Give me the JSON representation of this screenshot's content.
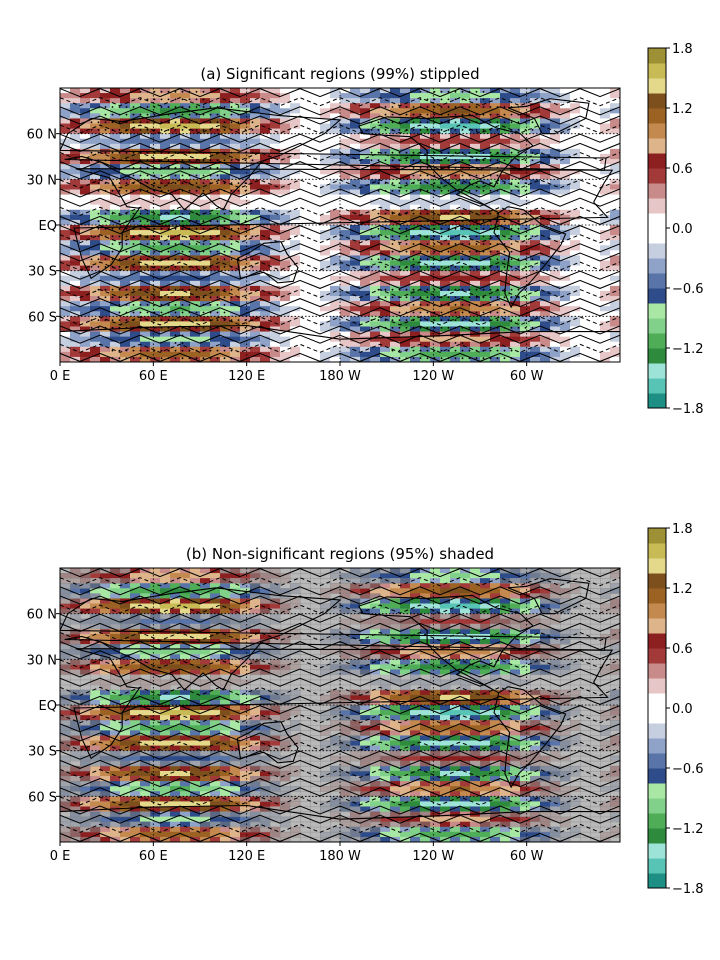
{
  "chart_data": [
    {
      "type": "heatmap",
      "panel": "a",
      "title": "(a) Significant regions (99%) stippled",
      "x_tick_labels": [
        "0 E",
        "60 E",
        "120 E",
        "180 W",
        "120 W",
        "60 W"
      ],
      "y_tick_labels": [
        "60 N",
        "30 N",
        "EQ",
        "30 S",
        "60 S"
      ],
      "xlim": [
        0,
        360
      ],
      "ylim": [
        -90,
        90
      ],
      "colorbar": {
        "range": [
          -1.8,
          1.8
        ],
        "tick_labels": [
          "1.8",
          "1.2",
          "0.6",
          "0.0",
          "−0.6",
          "−1.2",
          "−1.8"
        ],
        "levels": [
          -1.8,
          -1.65,
          -1.5,
          -1.35,
          -1.2,
          -1.05,
          -0.9,
          -0.75,
          -0.6,
          -0.45,
          -0.3,
          -0.15,
          0.0,
          0.15,
          0.3,
          0.45,
          0.6,
          0.75,
          0.9,
          1.05,
          1.2,
          1.35,
          1.5,
          1.65,
          1.8
        ],
        "colors": [
          "#1d8f84",
          "#58c4b6",
          "#9de3d8",
          "#2e8b3e",
          "#4fac57",
          "#82d18b",
          "#a8e8a4",
          "#2e4c8a",
          "#5874a8",
          "#8fa2c8",
          "#c6cfe0",
          "#ffffff",
          "#ffffff",
          "#e6c6c6",
          "#c98a8a",
          "#a23a3a",
          "#8c1f1f",
          "#deb48a",
          "#c4894f",
          "#9b6224",
          "#7d4f1c",
          "#e4d88a",
          "#c8bb55",
          "#9e9035"
        ]
      },
      "lon_pattern_strength": [
        0.3,
        0.65,
        0.9,
        1.0,
        0.85,
        0.5,
        0.1,
        -0.3,
        -0.65,
        -0.9,
        -1.0,
        -0.85,
        -0.5,
        -0.1
      ],
      "overlay": "stippled"
    },
    {
      "type": "heatmap",
      "panel": "b",
      "title": "(b) Non-significant regions (95%) shaded",
      "x_tick_labels": [
        "0 E",
        "60 E",
        "120 E",
        "180 W",
        "120 W",
        "60 W"
      ],
      "y_tick_labels": [
        "60 N",
        "30 N",
        "EQ",
        "30 S",
        "60 S"
      ],
      "xlim": [
        0,
        360
      ],
      "ylim": [
        -90,
        90
      ],
      "colorbar": {
        "range": [
          -1.8,
          1.8
        ],
        "tick_labels": [
          "1.8",
          "1.2",
          "0.6",
          "0.0",
          "−0.6",
          "−1.2",
          "−1.8"
        ]
      },
      "overlay": "grey shading"
    }
  ]
}
